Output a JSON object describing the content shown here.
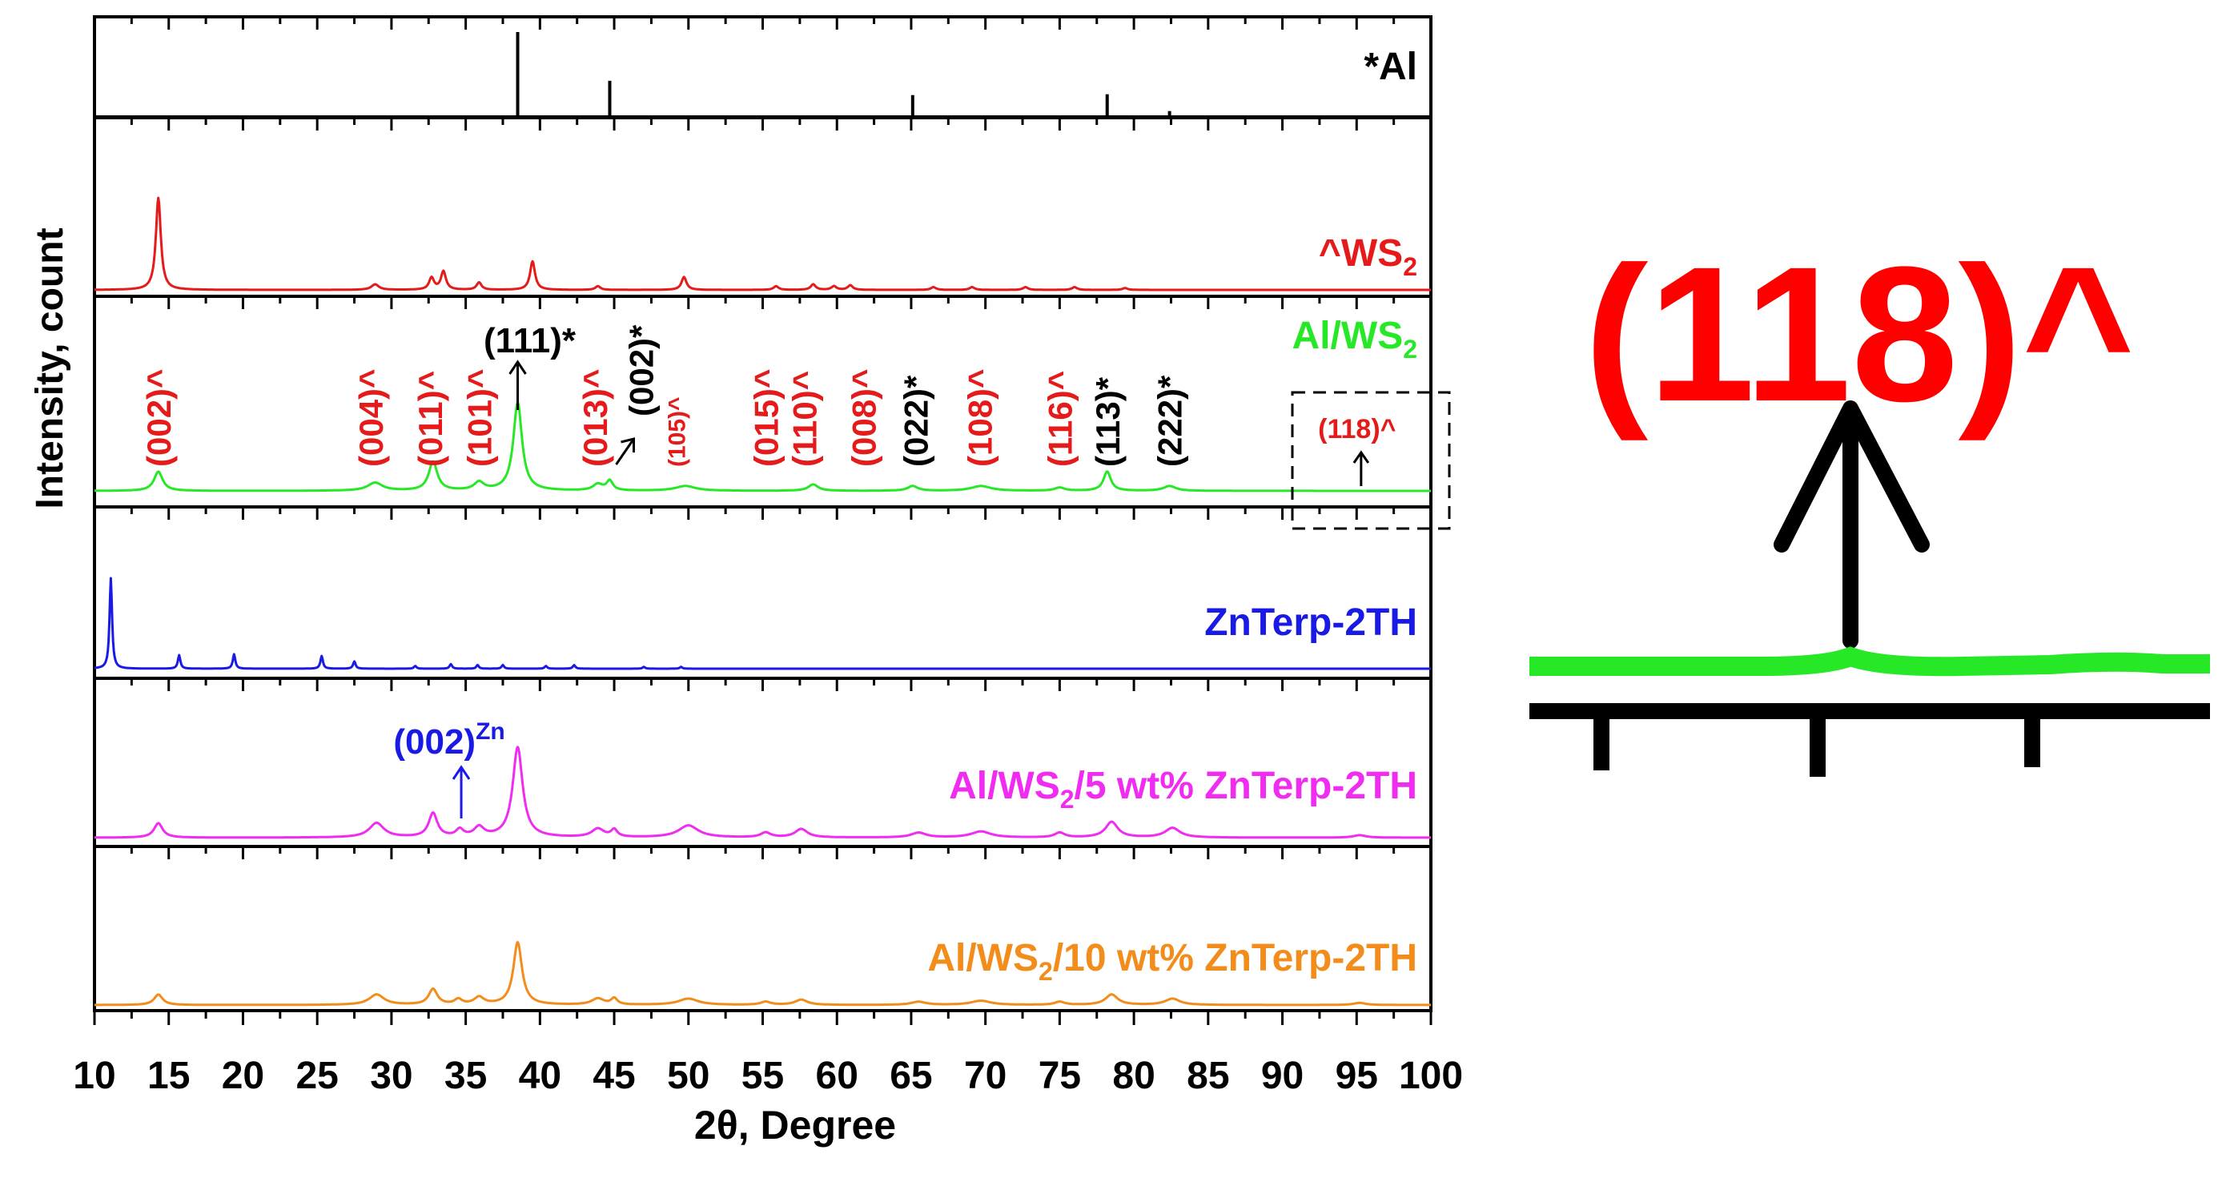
{
  "chart_data": {
    "type": "line",
    "title": "",
    "xlabel": "2θ, Degree",
    "ylabel": "Intensity, count",
    "xlim": [
      10,
      100
    ],
    "x_ticks": [
      "10",
      "15",
      "20",
      "25",
      "30",
      "35",
      "40",
      "45",
      "50",
      "55",
      "60",
      "65",
      "70",
      "75",
      "80",
      "85",
      "90",
      "95",
      "100"
    ],
    "grid": false,
    "series": [
      {
        "name": "*Al",
        "color": "#000000",
        "style": "stick",
        "label_parts": [
          "*Al"
        ],
        "peaks": [
          [
            38.5,
            1.0
          ],
          [
            44.7,
            0.42
          ],
          [
            65.1,
            0.25
          ],
          [
            78.2,
            0.26
          ],
          [
            82.4,
            0.06
          ]
        ]
      },
      {
        "name": "^WS2",
        "color": "#e51a1a",
        "style": "profile",
        "label_parts": [
          "^WS",
          "2",
          ""
        ],
        "peaks": [
          [
            14.3,
            1.0,
            0.2
          ],
          [
            28.9,
            0.06,
            0.3
          ],
          [
            32.7,
            0.13,
            0.2
          ],
          [
            33.5,
            0.2,
            0.2
          ],
          [
            35.9,
            0.08,
            0.2
          ],
          [
            39.5,
            0.31,
            0.2
          ],
          [
            43.9,
            0.04,
            0.2
          ],
          [
            49.7,
            0.14,
            0.2
          ],
          [
            55.9,
            0.04,
            0.2
          ],
          [
            58.4,
            0.06,
            0.2
          ],
          [
            59.8,
            0.04,
            0.2
          ],
          [
            60.9,
            0.05,
            0.2
          ],
          [
            66.5,
            0.03,
            0.2
          ],
          [
            69.1,
            0.03,
            0.2
          ],
          [
            72.7,
            0.03,
            0.2
          ],
          [
            76.0,
            0.03,
            0.2
          ],
          [
            79.4,
            0.02,
            0.2
          ]
        ]
      },
      {
        "name": "Al/WS2",
        "color": "#27e827",
        "style": "profile",
        "label_parts": [
          "Al/WS",
          "2",
          ""
        ],
        "peaks": [
          [
            14.3,
            0.12,
            0.35
          ],
          [
            28.9,
            0.05,
            0.6
          ],
          [
            32.8,
            0.18,
            0.35
          ],
          [
            35.9,
            0.05,
            0.4
          ],
          [
            38.5,
            0.55,
            0.35
          ],
          [
            43.9,
            0.04,
            0.4
          ],
          [
            44.7,
            0.06,
            0.25
          ],
          [
            49.8,
            0.03,
            0.8
          ],
          [
            58.4,
            0.04,
            0.4
          ],
          [
            65.1,
            0.03,
            0.4
          ],
          [
            69.7,
            0.03,
            0.8
          ],
          [
            75.0,
            0.02,
            0.4
          ],
          [
            78.2,
            0.12,
            0.3
          ],
          [
            82.4,
            0.03,
            0.5
          ]
        ]
      },
      {
        "name": "ZnTerp-2TH",
        "color": "#1a1ae5",
        "style": "profile",
        "label_parts": [
          "ZnTerp-2TH"
        ],
        "peaks": [
          [
            11.1,
            1.0,
            0.1
          ],
          [
            15.7,
            0.15,
            0.1
          ],
          [
            19.4,
            0.16,
            0.1
          ],
          [
            25.3,
            0.14,
            0.1
          ],
          [
            27.5,
            0.08,
            0.1
          ],
          [
            31.6,
            0.03,
            0.1
          ],
          [
            34.0,
            0.05,
            0.1
          ],
          [
            35.8,
            0.04,
            0.1
          ],
          [
            37.5,
            0.04,
            0.1
          ],
          [
            40.4,
            0.03,
            0.1
          ],
          [
            42.3,
            0.04,
            0.1
          ],
          [
            47.0,
            0.02,
            0.1
          ],
          [
            49.5,
            0.02,
            0.1
          ]
        ]
      },
      {
        "name": "Al/WS2/5 wt% ZnTerp-2TH",
        "color": "#f02cf0",
        "style": "profile",
        "label_parts": [
          "Al/WS",
          "2",
          "/5 wt% ZnTerp-2TH"
        ],
        "peaks": [
          [
            14.3,
            0.12,
            0.35
          ],
          [
            29.0,
            0.12,
            0.6
          ],
          [
            32.8,
            0.2,
            0.35
          ],
          [
            34.6,
            0.06,
            0.3
          ],
          [
            35.9,
            0.08,
            0.4
          ],
          [
            38.5,
            0.75,
            0.4
          ],
          [
            43.9,
            0.07,
            0.5
          ],
          [
            45.0,
            0.06,
            0.25
          ],
          [
            50.0,
            0.1,
            0.8
          ],
          [
            55.2,
            0.04,
            0.4
          ],
          [
            57.6,
            0.07,
            0.5
          ],
          [
            65.5,
            0.04,
            0.6
          ],
          [
            69.7,
            0.05,
            0.8
          ],
          [
            75.0,
            0.04,
            0.4
          ],
          [
            78.5,
            0.13,
            0.5
          ],
          [
            82.6,
            0.08,
            0.6
          ],
          [
            95.2,
            0.02,
            0.5
          ]
        ]
      },
      {
        "name": "Al/WS2/10 wt% ZnTerp-2TH",
        "color": "#f28c1a",
        "style": "profile",
        "label_parts": [
          "Al/WS",
          "2",
          "/10 wt% ZnTerp-2TH"
        ],
        "peaks": [
          [
            14.3,
            0.1,
            0.35
          ],
          [
            29.0,
            0.1,
            0.6
          ],
          [
            32.8,
            0.15,
            0.35
          ],
          [
            34.5,
            0.05,
            0.3
          ],
          [
            35.9,
            0.07,
            0.4
          ],
          [
            38.5,
            0.6,
            0.35
          ],
          [
            43.9,
            0.06,
            0.5
          ],
          [
            45.0,
            0.06,
            0.25
          ],
          [
            50.0,
            0.06,
            0.8
          ],
          [
            55.2,
            0.03,
            0.4
          ],
          [
            57.6,
            0.05,
            0.5
          ],
          [
            65.5,
            0.03,
            0.6
          ],
          [
            69.7,
            0.04,
            0.8
          ],
          [
            75.0,
            0.03,
            0.4
          ],
          [
            78.5,
            0.1,
            0.5
          ],
          [
            82.6,
            0.06,
            0.6
          ],
          [
            95.2,
            0.02,
            0.5
          ]
        ]
      }
    ],
    "annotations": {
      "red_labels": [
        {
          "x": 14.3,
          "text": "(002)^",
          "small": false
        },
        {
          "x": 28.6,
          "text": "(004)^",
          "small": false
        },
        {
          "x": 32.6,
          "text": "(011)^",
          "small": false
        },
        {
          "x": 35.9,
          "text": "(101)^",
          "small": false
        },
        {
          "x": 43.7,
          "text": "(013)^",
          "small": false
        },
        {
          "x": 49.2,
          "text": "(105)^",
          "small": true
        },
        {
          "x": 55.2,
          "text": "(015)^",
          "small": false
        },
        {
          "x": 57.8,
          "text": "(110)^",
          "small": false
        },
        {
          "x": 61.8,
          "text": "(008)^",
          "small": false
        },
        {
          "x": 69.6,
          "text": "(108)^",
          "small": false
        },
        {
          "x": 75.0,
          "text": "(116)^",
          "small": false
        }
      ],
      "black_labels": [
        {
          "x": 65.3,
          "text": "(022)*"
        },
        {
          "x": 78.2,
          "text": "(113)*"
        },
        {
          "x": 82.4,
          "text": "(222)*"
        }
      ],
      "peak_111": {
        "x": 38.5,
        "text": "(111)*"
      },
      "peak_002_al": {
        "x": 44.7,
        "text": "(002)*"
      },
      "peak_118": {
        "x": 95.3,
        "text": "(118)^"
      },
      "zn_peak": {
        "x": 34.7,
        "text": "(002)",
        "sup": "Zn"
      },
      "inset_label": "(118)^"
    }
  }
}
